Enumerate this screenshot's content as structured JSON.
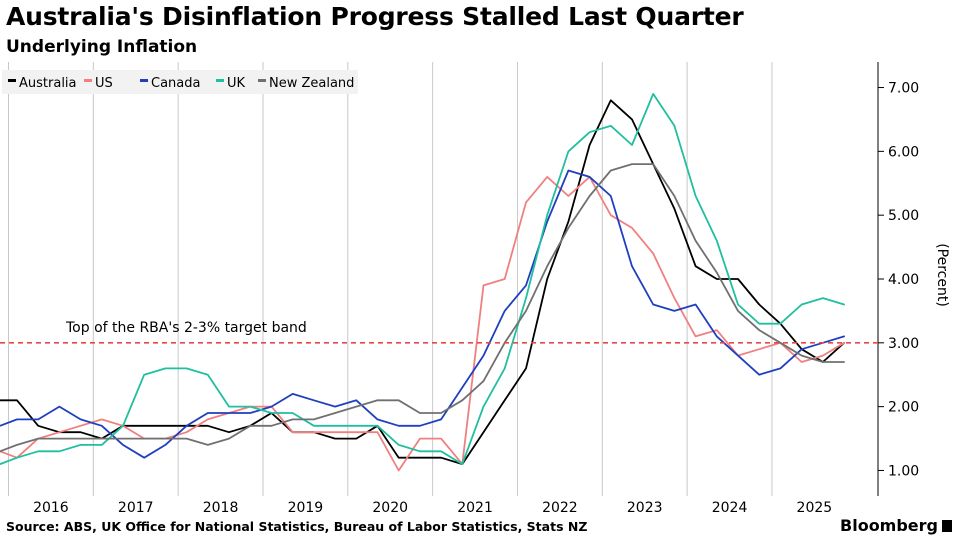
{
  "title": "Australia's Disinflation Progress Stalled Last Quarter",
  "subtitle": "Underlying Inflation",
  "source": "Source: ABS, UK Office for National Statistics, Bureau of Labor Statistics, Stats NZ",
  "brand": "Bloomberg",
  "chart_data": {
    "type": "line",
    "ylabel": "(Percent)",
    "ylim": [
      0.6,
      7.4
    ],
    "xlim": [
      2015.4,
      2025.75
    ],
    "yticks": [
      1,
      2,
      3,
      4,
      5,
      6,
      7
    ],
    "ytick_labels": [
      "1.00",
      "2.00",
      "3.00",
      "4.00",
      "5.00",
      "6.00",
      "7.00"
    ],
    "xticks": [
      2016,
      2017,
      2018,
      2019,
      2020,
      2021,
      2022,
      2023,
      2024,
      2025
    ],
    "xtick_labels": [
      "2016",
      "2017",
      "2018",
      "2019",
      "2020",
      "2021",
      "2022",
      "2023",
      "2024",
      "2025"
    ],
    "legend_position": "top-left",
    "grid": "vertical year separators",
    "annotation": {
      "text": "Top of the RBA's 2-3% target band",
      "y": 3.0,
      "color": "#e8464a"
    },
    "series": [
      {
        "name": "Australia",
        "color": "#000000",
        "x": [
          2015.4,
          2015.6,
          2015.85,
          2016.1,
          2016.35,
          2016.6,
          2016.85,
          2017.1,
          2017.35,
          2017.6,
          2017.85,
          2018.1,
          2018.35,
          2018.6,
          2018.85,
          2019.1,
          2019.35,
          2019.6,
          2019.85,
          2020.1,
          2020.35,
          2020.6,
          2020.85,
          2021.1,
          2021.35,
          2021.6,
          2021.85,
          2022.1,
          2022.35,
          2022.6,
          2022.85,
          2023.1,
          2023.35,
          2023.6,
          2023.85,
          2024.1,
          2024.35,
          2024.6,
          2024.85,
          2025.1,
          2025.35
        ],
        "y": [
          2.1,
          2.1,
          1.7,
          1.6,
          1.6,
          1.5,
          1.7,
          1.7,
          1.7,
          1.7,
          1.7,
          1.6,
          1.7,
          1.9,
          1.6,
          1.6,
          1.5,
          1.5,
          1.7,
          1.2,
          1.2,
          1.2,
          1.1,
          1.6,
          2.1,
          2.6,
          4.0,
          4.9,
          6.1,
          6.8,
          6.5,
          5.8,
          5.1,
          4.2,
          4.0,
          4.0,
          3.6,
          3.3,
          2.9,
          2.7,
          3.0
        ]
      },
      {
        "name": "US",
        "color": "#f08080",
        "x": [
          2015.4,
          2015.6,
          2015.85,
          2016.1,
          2016.35,
          2016.6,
          2016.85,
          2017.1,
          2017.35,
          2017.6,
          2017.85,
          2018.1,
          2018.35,
          2018.6,
          2018.85,
          2019.1,
          2019.35,
          2019.6,
          2019.85,
          2020.1,
          2020.35,
          2020.6,
          2020.85,
          2021.1,
          2021.35,
          2021.6,
          2021.85,
          2022.1,
          2022.35,
          2022.6,
          2022.85,
          2023.1,
          2023.35,
          2023.6,
          2023.85,
          2024.1,
          2024.35,
          2024.6,
          2024.85,
          2025.1,
          2025.35
        ],
        "y": [
          1.3,
          1.2,
          1.5,
          1.6,
          1.7,
          1.8,
          1.7,
          1.5,
          1.5,
          1.6,
          1.8,
          1.9,
          2.0,
          2.0,
          1.6,
          1.6,
          1.6,
          1.6,
          1.6,
          1.0,
          1.5,
          1.5,
          1.1,
          3.9,
          4.0,
          5.2,
          5.6,
          5.3,
          5.6,
          5.0,
          4.8,
          4.4,
          3.7,
          3.1,
          3.2,
          2.8,
          2.9,
          3.0,
          2.7,
          2.8,
          3.0
        ]
      },
      {
        "name": "Canada",
        "color": "#1f3fbf",
        "x": [
          2015.4,
          2015.6,
          2015.85,
          2016.1,
          2016.35,
          2016.6,
          2016.85,
          2017.1,
          2017.35,
          2017.6,
          2017.85,
          2018.1,
          2018.35,
          2018.6,
          2018.85,
          2019.1,
          2019.35,
          2019.6,
          2019.85,
          2020.1,
          2020.35,
          2020.6,
          2020.85,
          2021.1,
          2021.35,
          2021.6,
          2021.85,
          2022.1,
          2022.35,
          2022.6,
          2022.85,
          2023.1,
          2023.35,
          2023.6,
          2023.85,
          2024.1,
          2024.35,
          2024.6,
          2024.85,
          2025.1,
          2025.35
        ],
        "y": [
          1.7,
          1.8,
          1.8,
          2.0,
          1.8,
          1.7,
          1.4,
          1.2,
          1.4,
          1.7,
          1.9,
          1.9,
          1.9,
          2.0,
          2.2,
          2.1,
          2.0,
          2.1,
          1.8,
          1.7,
          1.7,
          1.8,
          2.3,
          2.8,
          3.5,
          3.9,
          4.9,
          5.7,
          5.6,
          5.3,
          4.2,
          3.6,
          3.5,
          3.6,
          3.1,
          2.8,
          2.5,
          2.6,
          2.9,
          3.0,
          3.1
        ]
      },
      {
        "name": "UK",
        "color": "#1fbf9f",
        "x": [
          2015.4,
          2015.6,
          2015.85,
          2016.1,
          2016.35,
          2016.6,
          2016.85,
          2017.1,
          2017.35,
          2017.6,
          2017.85,
          2018.1,
          2018.35,
          2018.6,
          2018.85,
          2019.1,
          2019.35,
          2019.6,
          2019.85,
          2020.1,
          2020.35,
          2020.6,
          2020.85,
          2021.1,
          2021.35,
          2021.6,
          2021.85,
          2022.1,
          2022.35,
          2022.6,
          2022.85,
          2023.1,
          2023.35,
          2023.6,
          2023.85,
          2024.1,
          2024.35,
          2024.6,
          2024.85,
          2025.1,
          2025.35
        ],
        "y": [
          1.1,
          1.2,
          1.3,
          1.3,
          1.4,
          1.4,
          1.7,
          2.5,
          2.6,
          2.6,
          2.5,
          2.0,
          2.0,
          1.9,
          1.9,
          1.7,
          1.7,
          1.7,
          1.7,
          1.4,
          1.3,
          1.3,
          1.1,
          2.0,
          2.6,
          3.7,
          5.0,
          6.0,
          6.3,
          6.4,
          6.1,
          6.9,
          6.4,
          5.3,
          4.6,
          3.6,
          3.3,
          3.3,
          3.6,
          3.7,
          3.6
        ]
      },
      {
        "name": "New Zealand",
        "color": "#707070",
        "x": [
          2015.4,
          2015.6,
          2015.85,
          2016.1,
          2016.35,
          2016.6,
          2016.85,
          2017.1,
          2017.35,
          2017.6,
          2017.85,
          2018.1,
          2018.35,
          2018.6,
          2018.85,
          2019.1,
          2019.35,
          2019.6,
          2019.85,
          2020.1,
          2020.35,
          2020.6,
          2020.85,
          2021.1,
          2021.35,
          2021.6,
          2021.85,
          2022.1,
          2022.35,
          2022.6,
          2022.85,
          2023.1,
          2023.35,
          2023.6,
          2023.85,
          2024.1,
          2024.35,
          2024.6,
          2024.85,
          2025.1,
          2025.35
        ],
        "y": [
          1.3,
          1.4,
          1.5,
          1.5,
          1.5,
          1.5,
          1.5,
          1.5,
          1.5,
          1.5,
          1.4,
          1.5,
          1.7,
          1.7,
          1.8,
          1.8,
          1.9,
          2.0,
          2.1,
          2.1,
          1.9,
          1.9,
          2.1,
          2.4,
          3.0,
          3.5,
          4.2,
          4.8,
          5.3,
          5.7,
          5.8,
          5.8,
          5.3,
          4.6,
          4.1,
          3.5,
          3.2,
          3.0,
          2.8,
          2.7,
          2.7
        ]
      }
    ]
  }
}
